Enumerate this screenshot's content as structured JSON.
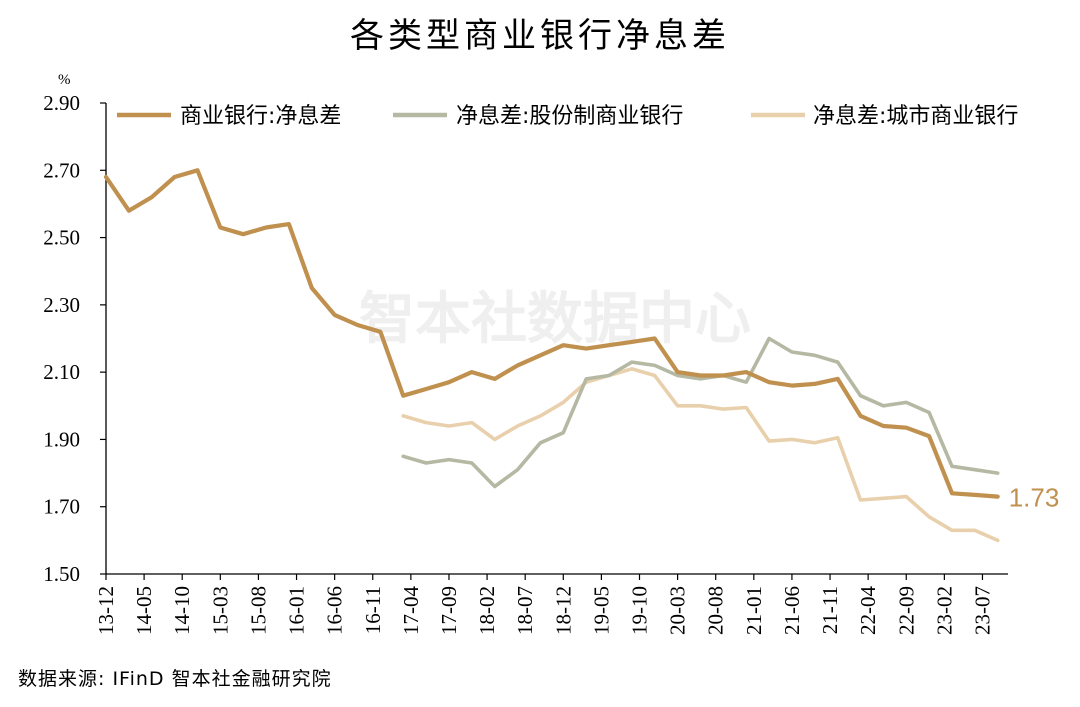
{
  "title": "各类型商业银行净息差",
  "source": "数据来源: IFinD 智本社金融研究院",
  "watermark": "智本社数据中心",
  "colors": {
    "commercial": "#c0904f",
    "joint_stock": "#b5b9a3",
    "city": "#e9d0ac",
    "axis": "#000000"
  },
  "chart_data": {
    "type": "line",
    "title": "各类型商业银行净息差",
    "xlabel": "",
    "ylabel": "%",
    "ylim": [
      1.5,
      2.9
    ],
    "yticks": [
      "1.50",
      "1.70",
      "1.90",
      "2.10",
      "2.30",
      "2.50",
      "2.70",
      "2.90"
    ],
    "x": [
      "13-12",
      "14-03",
      "14-06",
      "14-09",
      "14-12",
      "15-03",
      "15-06",
      "15-09",
      "15-12",
      "16-03",
      "16-06",
      "16-09",
      "16-12",
      "17-03",
      "17-06",
      "17-09",
      "17-12",
      "18-03",
      "18-06",
      "18-09",
      "18-12",
      "19-03",
      "19-06",
      "19-09",
      "19-12",
      "20-03",
      "20-06",
      "20-09",
      "20-12",
      "21-03",
      "21-06",
      "21-09",
      "21-12",
      "22-03",
      "22-06",
      "22-09",
      "22-12",
      "23-03",
      "23-06",
      "23-09"
    ],
    "xtick_labels": [
      "13-12",
      "14-05",
      "14-10",
      "15-03",
      "15-08",
      "16-01",
      "16-06",
      "16-11",
      "17-04",
      "17-09",
      "18-02",
      "18-07",
      "18-12",
      "19-05",
      "19-10",
      "20-03",
      "20-08",
      "21-01",
      "21-06",
      "21-11",
      "22-04",
      "22-09",
      "23-02",
      "23-07"
    ],
    "legend_position": "top",
    "grid": false,
    "series": [
      {
        "name": "商业银行:净息差",
        "color_key": "commercial",
        "values": [
          2.68,
          2.58,
          2.62,
          2.68,
          2.7,
          2.53,
          2.51,
          2.53,
          2.54,
          2.35,
          2.27,
          2.24,
          2.22,
          2.03,
          2.05,
          2.07,
          2.1,
          2.08,
          2.12,
          2.15,
          2.18,
          2.17,
          2.18,
          2.19,
          2.2,
          2.1,
          2.09,
          2.09,
          2.1,
          2.07,
          2.06,
          2.065,
          2.08,
          1.97,
          1.94,
          1.935,
          1.91,
          1.74,
          1.735,
          1.73
        ]
      },
      {
        "name": "净息差:股份制商业银行",
        "color_key": "joint_stock",
        "values": [
          null,
          null,
          null,
          null,
          null,
          null,
          null,
          null,
          null,
          null,
          null,
          null,
          null,
          1.85,
          1.83,
          1.84,
          1.83,
          1.76,
          1.81,
          1.89,
          1.92,
          2.08,
          2.09,
          2.13,
          2.12,
          2.09,
          2.08,
          2.09,
          2.07,
          2.2,
          2.16,
          2.15,
          2.13,
          2.03,
          2.0,
          2.01,
          1.98,
          1.82,
          1.81,
          1.8
        ]
      },
      {
        "name": "净息差:城市商业银行",
        "color_key": "city",
        "values": [
          null,
          null,
          null,
          null,
          null,
          null,
          null,
          null,
          null,
          null,
          null,
          null,
          null,
          1.97,
          1.95,
          1.94,
          1.95,
          1.9,
          1.94,
          1.97,
          2.01,
          2.07,
          2.09,
          2.11,
          2.09,
          2.0,
          2.0,
          1.99,
          1.995,
          1.895,
          1.9,
          1.89,
          1.905,
          1.72,
          1.725,
          1.73,
          1.67,
          1.63,
          1.63,
          1.6
        ]
      }
    ],
    "annotations": [
      {
        "text": "1.73",
        "series": "商业银行:净息差",
        "at": "23-09"
      }
    ]
  }
}
